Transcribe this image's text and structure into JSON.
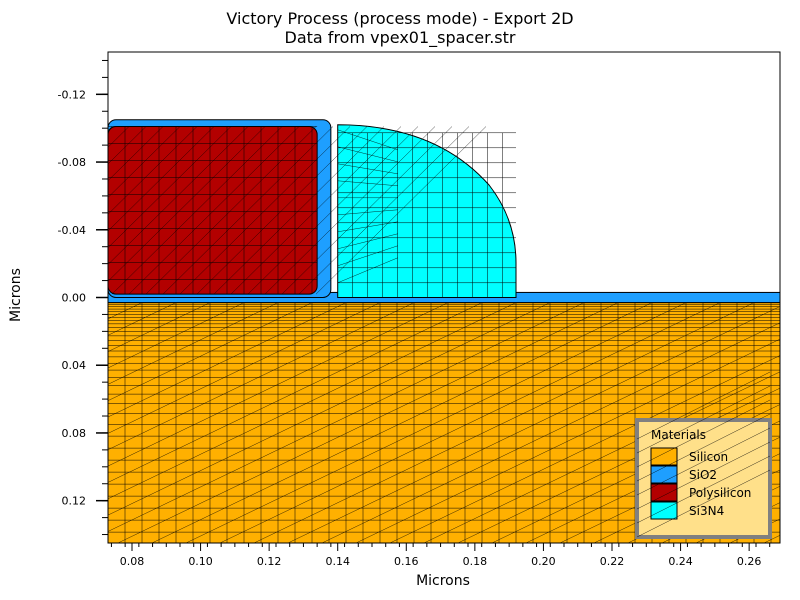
{
  "chart_data": {
    "type": "heatmap",
    "title": "Victory Process  (process mode) - Export 2D",
    "subtitle": "Data from vpex01_spacer.str",
    "xlabel": "Microns",
    "ylabel": "Microns",
    "xlim": [
      0.073,
      0.269
    ],
    "ylim": [
      -0.145,
      0.145
    ],
    "y_inverted": true,
    "grid": false,
    "x_ticks": [
      "0.08",
      "0.10",
      "0.12",
      "0.14",
      "0.16",
      "0.18",
      "0.20",
      "0.22",
      "0.24",
      "0.26"
    ],
    "x_tick_values": [
      0.08,
      0.1,
      0.12,
      0.14,
      0.16,
      0.18,
      0.2,
      0.22,
      0.24,
      0.26
    ],
    "y_ticks": [
      "-0.12",
      "-0.08",
      "-0.04",
      "0.00",
      "0.04",
      "0.08",
      "0.12"
    ],
    "y_tick_values": [
      -0.12,
      -0.08,
      -0.04,
      0.0,
      0.04,
      0.08,
      0.12
    ],
    "legend": {
      "title": "Materials",
      "placement": "bottom-right",
      "entries": [
        {
          "label": "Silicon",
          "color": "#FFB000"
        },
        {
          "label": "SiO2",
          "color": "#1E9FFF"
        },
        {
          "label": "Polysilicon",
          "color": "#B30000"
        },
        {
          "label": "Si3N4",
          "color": "#00FFFF"
        }
      ]
    },
    "regions": [
      {
        "material": "Silicon",
        "x": [
          0.073,
          0.269
        ],
        "y": [
          0.003,
          0.145
        ]
      },
      {
        "material": "SiO2",
        "x": [
          0.073,
          0.269
        ],
        "y": [
          -0.003,
          0.003
        ]
      },
      {
        "material": "SiO2",
        "x": [
          0.073,
          0.138
        ],
        "y": [
          -0.105,
          0.0
        ]
      },
      {
        "material": "Polysilicon",
        "x": [
          0.073,
          0.134
        ],
        "y": [
          -0.101,
          -0.002
        ]
      },
      {
        "material": "Si3N4",
        "x": [
          0.14,
          0.192
        ],
        "y": [
          -0.102,
          0.0
        ]
      }
    ]
  },
  "colors": {
    "background": "#FFFFFF",
    "legend_background": "#FFE08A",
    "legend_border": "#808080"
  }
}
